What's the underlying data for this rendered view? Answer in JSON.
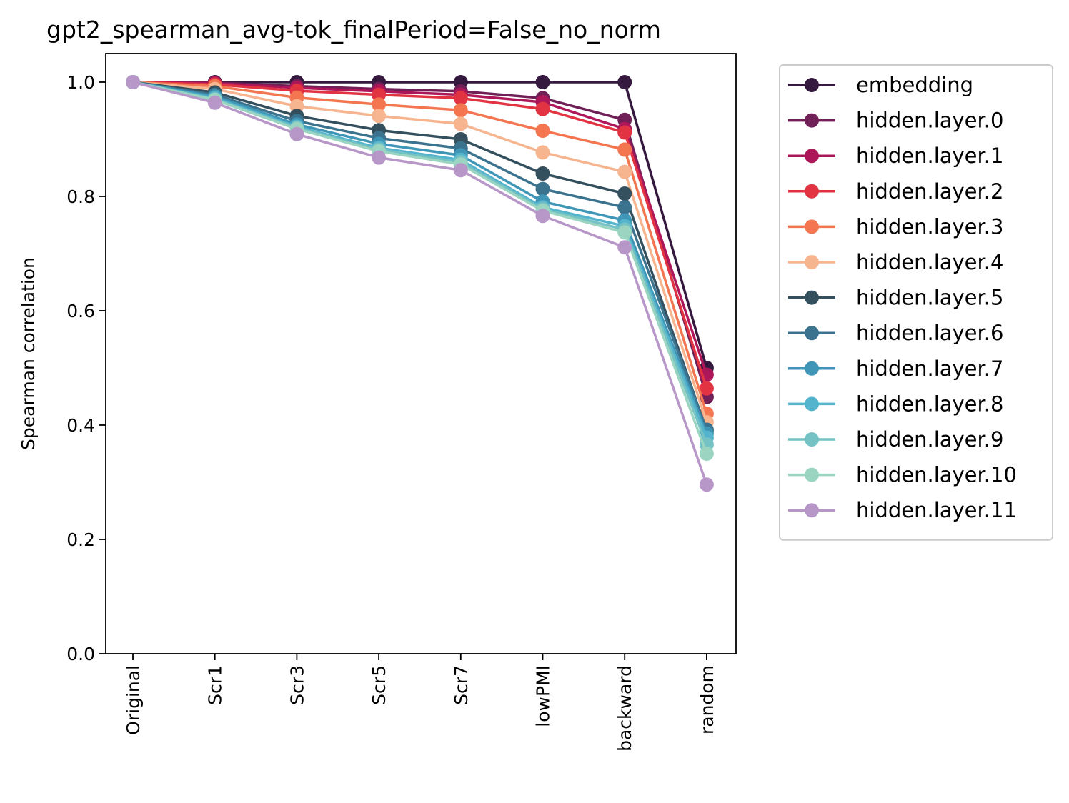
{
  "chart_data": {
    "type": "line",
    "title": "gpt2_spearman_avg-tok_finalPeriod=False_no_norm",
    "xlabel": "",
    "ylabel": "Spearman correlation",
    "ylim": [
      0.0,
      1.05
    ],
    "yticks": [
      "0.0",
      "0.2",
      "0.4",
      "0.6",
      "0.8",
      "1.0"
    ],
    "categories": [
      "Original",
      "Scr1",
      "Scr3",
      "Scr5",
      "Scr7",
      "lowPMI",
      "backward",
      "random"
    ],
    "grid": false,
    "legend_position": "outside-right-top",
    "series": [
      {
        "name": "embedding",
        "color": "#35193e",
        "values": [
          1.0,
          1.0,
          1.0,
          1.0,
          1.0,
          1.0,
          1.0,
          0.5
        ]
      },
      {
        "name": "hidden.layer.0",
        "color": "#701f57",
        "values": [
          1.0,
          0.999,
          0.993,
          0.988,
          0.984,
          0.972,
          0.934,
          0.449
        ]
      },
      {
        "name": "hidden.layer.1",
        "color": "#ad1759",
        "values": [
          1.0,
          0.998,
          0.99,
          0.984,
          0.978,
          0.965,
          0.918,
          0.488
        ]
      },
      {
        "name": "hidden.layer.2",
        "color": "#e13342",
        "values": [
          1.0,
          0.996,
          0.985,
          0.978,
          0.972,
          0.953,
          0.912,
          0.464
        ]
      },
      {
        "name": "hidden.layer.3",
        "color": "#f37651",
        "values": [
          1.0,
          0.993,
          0.973,
          0.961,
          0.951,
          0.915,
          0.882,
          0.42
        ]
      },
      {
        "name": "hidden.layer.4",
        "color": "#f6b48f",
        "values": [
          1.0,
          0.988,
          0.958,
          0.941,
          0.927,
          0.877,
          0.843,
          0.405
        ]
      },
      {
        "name": "hidden.layer.5",
        "color": "#34505e",
        "values": [
          1.0,
          0.982,
          0.941,
          0.916,
          0.9,
          0.84,
          0.805,
          0.39
        ]
      },
      {
        "name": "hidden.layer.6",
        "color": "#3b738f",
        "values": [
          1.0,
          0.978,
          0.932,
          0.902,
          0.884,
          0.813,
          0.781,
          0.392
        ]
      },
      {
        "name": "hidden.layer.7",
        "color": "#3f96b7",
        "values": [
          1.0,
          0.975,
          0.926,
          0.892,
          0.872,
          0.791,
          0.758,
          0.385
        ]
      },
      {
        "name": "hidden.layer.8",
        "color": "#55b4cd",
        "values": [
          1.0,
          0.972,
          0.922,
          0.885,
          0.864,
          0.781,
          0.748,
          0.378
        ]
      },
      {
        "name": "hidden.layer.9",
        "color": "#74c2c4",
        "values": [
          1.0,
          0.97,
          0.92,
          0.882,
          0.86,
          0.778,
          0.742,
          0.366
        ]
      },
      {
        "name": "hidden.layer.10",
        "color": "#9bd5c2",
        "values": [
          1.0,
          0.969,
          0.918,
          0.879,
          0.856,
          0.775,
          0.737,
          0.35
        ]
      },
      {
        "name": "hidden.layer.11",
        "color": "#b796c8",
        "values": [
          1.0,
          0.964,
          0.909,
          0.868,
          0.846,
          0.766,
          0.711,
          0.296
        ]
      }
    ]
  }
}
